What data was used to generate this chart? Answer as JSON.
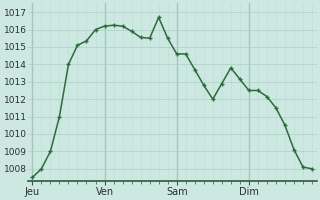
{
  "background_color": "#cce8e0",
  "grid_color_major": "#aacfc8",
  "grid_color_minor": "#bbddd6",
  "line_color": "#2d6b3c",
  "marker_color": "#2d6b3c",
  "spine_color": "#2d5c38",
  "xtick_labels": [
    "Jeu",
    "Ven",
    "Sam",
    "Dim"
  ],
  "xtick_positions": [
    0,
    8,
    16,
    24
  ],
  "ytick_positions": [
    1008,
    1009,
    1010,
    1011,
    1012,
    1013,
    1014,
    1015,
    1016,
    1017
  ],
  "ylim": [
    1007.3,
    1017.5
  ],
  "xlim": [
    -0.5,
    31.5
  ],
  "x": [
    0,
    1,
    2,
    3,
    4,
    5,
    6,
    7,
    8,
    9,
    10,
    11,
    12,
    13,
    14,
    15,
    16,
    17,
    18,
    19,
    20,
    21,
    22,
    23,
    24,
    25,
    26,
    27,
    28,
    29,
    30,
    31
  ],
  "y": [
    1007.5,
    1008.0,
    1009.0,
    1011.0,
    1014.0,
    1015.1,
    1015.35,
    1016.0,
    1016.2,
    1016.25,
    1016.2,
    1015.9,
    1015.55,
    1015.5,
    1016.7,
    1015.5,
    1014.6,
    1014.6,
    1013.7,
    1012.8,
    1012.0,
    1012.9,
    1013.8,
    1013.15,
    1012.5,
    1012.5,
    1012.15,
    1011.5,
    1010.5,
    1009.1,
    1008.1,
    1008.0
  ]
}
